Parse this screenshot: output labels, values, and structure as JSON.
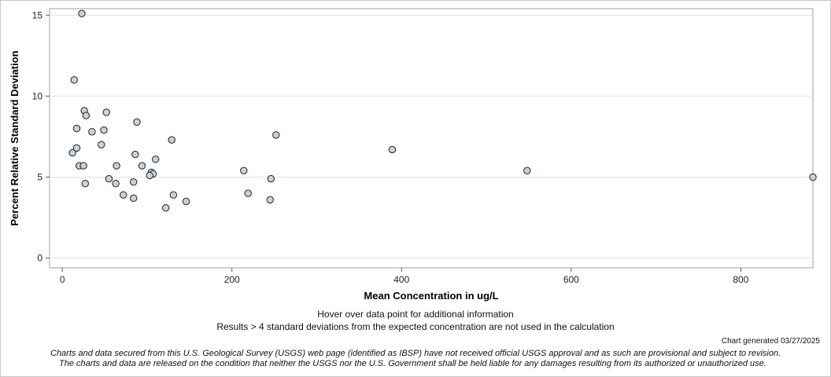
{
  "chart_data": {
    "type": "scatter",
    "title": "",
    "xlabel": "Mean Concentration in ug/L",
    "ylabel": "Percent Relative Standard Deviation",
    "xlim": [
      -15,
      885
    ],
    "ylim": [
      -0.6,
      15.4
    ],
    "xticks": [
      0,
      200,
      400,
      600,
      800
    ],
    "yticks": [
      0,
      5,
      10,
      15
    ],
    "grid": "horizontal",
    "marker_fill": "#c6d2e0",
    "marker_edge": "#222222",
    "points": [
      {
        "x": 23,
        "y": 15.1
      },
      {
        "x": 14,
        "y": 11.0
      },
      {
        "x": 26,
        "y": 9.1
      },
      {
        "x": 52,
        "y": 9.0
      },
      {
        "x": 28,
        "y": 8.8
      },
      {
        "x": 88,
        "y": 8.4
      },
      {
        "x": 17,
        "y": 8.0
      },
      {
        "x": 49,
        "y": 7.9
      },
      {
        "x": 35,
        "y": 7.8
      },
      {
        "x": 252,
        "y": 7.6
      },
      {
        "x": 129,
        "y": 7.3
      },
      {
        "x": 46,
        "y": 7.0
      },
      {
        "x": 17,
        "y": 6.8
      },
      {
        "x": 389,
        "y": 6.7
      },
      {
        "x": 12,
        "y": 6.5
      },
      {
        "x": 86,
        "y": 6.4
      },
      {
        "x": 110,
        "y": 6.1
      },
      {
        "x": 20,
        "y": 5.7
      },
      {
        "x": 25,
        "y": 5.7
      },
      {
        "x": 64,
        "y": 5.7
      },
      {
        "x": 94,
        "y": 5.7
      },
      {
        "x": 214,
        "y": 5.4
      },
      {
        "x": 548,
        "y": 5.4
      },
      {
        "x": 105,
        "y": 5.3
      },
      {
        "x": 107,
        "y": 5.2
      },
      {
        "x": 103,
        "y": 5.1
      },
      {
        "x": 885,
        "y": 5.0
      },
      {
        "x": 55,
        "y": 4.9
      },
      {
        "x": 246,
        "y": 4.9
      },
      {
        "x": 84,
        "y": 4.7
      },
      {
        "x": 27,
        "y": 4.6
      },
      {
        "x": 63,
        "y": 4.6
      },
      {
        "x": 219,
        "y": 4.0
      },
      {
        "x": 72,
        "y": 3.9
      },
      {
        "x": 131,
        "y": 3.9
      },
      {
        "x": 84,
        "y": 3.7
      },
      {
        "x": 245,
        "y": 3.6
      },
      {
        "x": 146,
        "y": 3.5
      },
      {
        "x": 122,
        "y": 3.1
      }
    ]
  },
  "footer": {
    "hover_note": "Hover over data point for additional information",
    "results_note": "Results > 4 standard deviations from the expected concentration are not used in the calculation",
    "generated": "Chart generated 03/27/2025",
    "disclaimer_1": "Charts and data secured from this U.S. Geological Survey (USGS) web page (identified as IBSP) have not received official USGS approval and as such are provisional and subject to revision.",
    "disclaimer_2": "The charts and data are released on the condition that neither the USGS nor the U.S. Government shall be held liable for any damages resulting from its authorized or unauthorized use."
  }
}
